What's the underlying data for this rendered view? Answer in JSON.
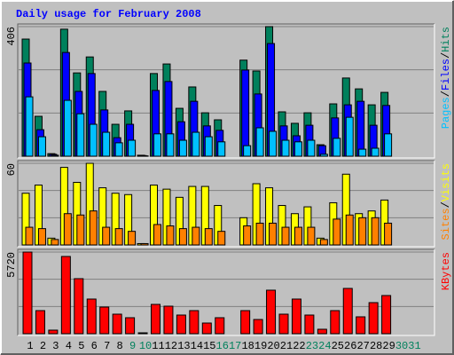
{
  "title": "Daily usage for February 2008",
  "legend_separator": "/",
  "chart_data": [
    {
      "type": "bar",
      "ylim": [
        0,
        406
      ],
      "yticks": [
        406
      ],
      "series": [
        {
          "name": "Hits",
          "color": "#00805c",
          "values": [
            367,
            125,
            8,
            398,
            261,
            311,
            203,
            100,
            142,
            3,
            259,
            289,
            150,
            217,
            136,
            114,
            0,
            301,
            267,
            406,
            139,
            103,
            136,
            36,
            164,
            245,
            211,
            161,
            200,
            0,
            0
          ]
        },
        {
          "name": "Files",
          "color": "#0000ff",
          "values": [
            292,
            83,
            6,
            325,
            203,
            259,
            145,
            58,
            100,
            2,
            206,
            234,
            108,
            172,
            95,
            81,
            0,
            270,
            195,
            353,
            95,
            64,
            97,
            33,
            120,
            161,
            172,
            97,
            159,
            0,
            0
          ]
        },
        {
          "name": "Pages",
          "color": "#00c0ff",
          "values": [
            186,
            61,
            3,
            175,
            133,
            100,
            75,
            42,
            50,
            1,
            70,
            70,
            50,
            75,
            61,
            45,
            0,
            33,
            89,
            78,
            50,
            45,
            50,
            6,
            56,
            122,
            22,
            25,
            70,
            0,
            0
          ]
        }
      ]
    },
    {
      "type": "bar",
      "ylim": [
        0,
        60
      ],
      "yticks": [
        60
      ],
      "series": [
        {
          "name": "Visits",
          "color": "#ffff00",
          "values": [
            38,
            44,
            5,
            57,
            46,
            60,
            42,
            38,
            37,
            1,
            44,
            41,
            35,
            43,
            43,
            29,
            0,
            20,
            45,
            42,
            29,
            23,
            28,
            5,
            31,
            52,
            23,
            25,
            33,
            0,
            0
          ]
        },
        {
          "name": "Sites",
          "color": "#ff8000",
          "values": [
            13,
            12,
            4,
            23,
            22,
            25,
            13,
            12,
            10,
            1,
            15,
            14,
            12,
            13,
            12,
            10,
            0,
            14,
            16,
            16,
            13,
            13,
            13,
            4,
            19,
            22,
            20,
            20,
            16,
            0,
            0
          ]
        }
      ]
    },
    {
      "type": "bar",
      "ylim": [
        0,
        5720
      ],
      "yticks": [
        5720
      ],
      "categories": [
        "1",
        "2",
        "3",
        "4",
        "5",
        "6",
        "7",
        "8",
        "9",
        "10",
        "11",
        "12",
        "13",
        "14",
        "15",
        "16",
        "17",
        "18",
        "19",
        "20",
        "21",
        "22",
        "23",
        "24",
        "25",
        "26",
        "27",
        "28",
        "29",
        "30",
        "31"
      ],
      "label_colors": [
        "#000000",
        "#000000",
        "#000000",
        "#000000",
        "#000000",
        "#000000",
        "#000000",
        "#000000",
        "#00805c",
        "#00805c",
        "#000000",
        "#000000",
        "#000000",
        "#000000",
        "#000000",
        "#00805c",
        "#00805c",
        "#000000",
        "#000000",
        "#000000",
        "#000000",
        "#000000",
        "#00805c",
        "#00805c",
        "#000000",
        "#000000",
        "#000000",
        "#000000",
        "#000000",
        "#00805c",
        "#00805c"
      ],
      "series": [
        {
          "name": "KBytes",
          "color": "#ff0000",
          "values": [
            5720,
            1617,
            249,
            5411,
            3856,
            2426,
            1866,
            1368,
            1120,
            62,
            2053,
            1928,
            1306,
            1617,
            746,
            1120,
            0,
            1617,
            995,
            3048,
            1368,
            2426,
            1306,
            311,
            1617,
            3172,
            1182,
            2177,
            2674,
            0,
            0
          ]
        }
      ]
    }
  ]
}
